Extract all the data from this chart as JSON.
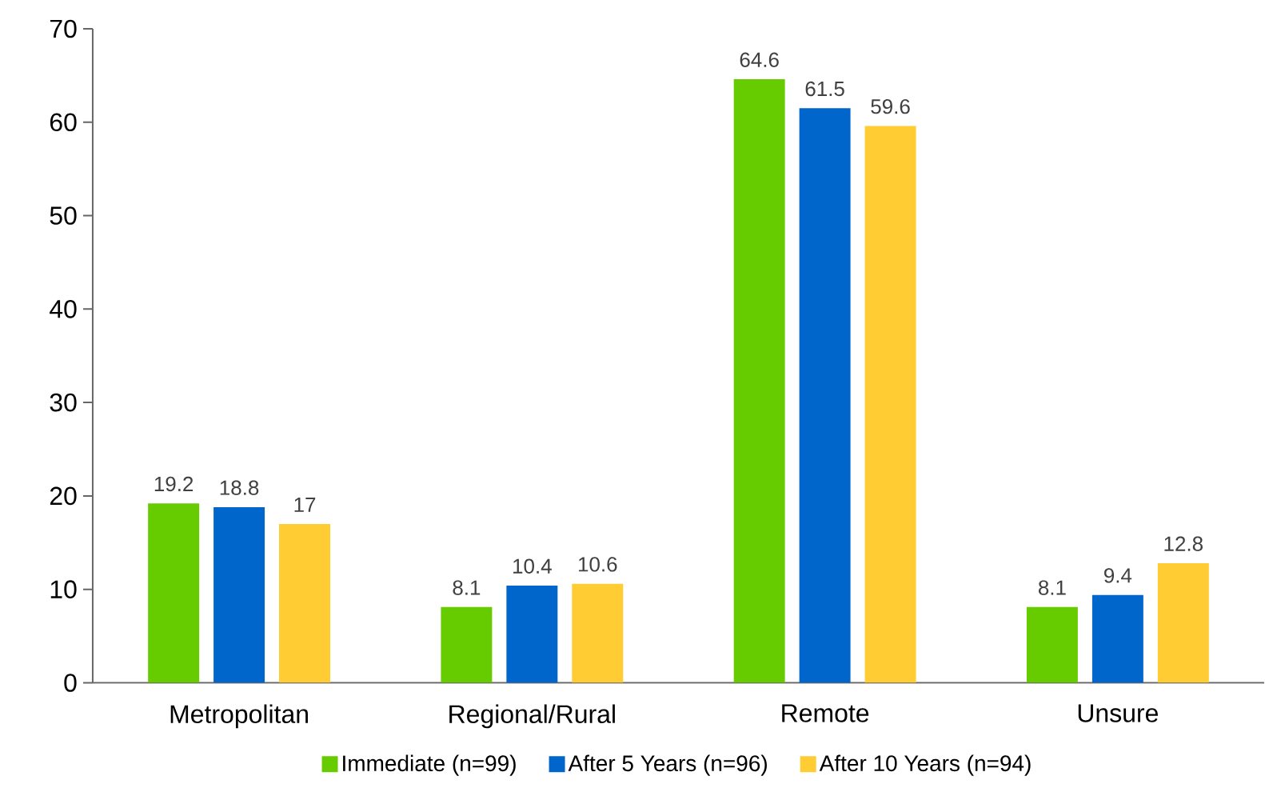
{
  "chart_data": {
    "type": "bar",
    "categories": [
      "Metropolitan",
      "Regional/Rural",
      "Remote",
      "Unsure"
    ],
    "series": [
      {
        "name": "Immediate (n=99)",
        "color": "#66cc00",
        "values": [
          19.2,
          8.1,
          64.6,
          8.1
        ]
      },
      {
        "name": "After 5 Years (n=96)",
        "color": "#0066cc",
        "values": [
          18.8,
          10.4,
          61.5,
          9.4
        ]
      },
      {
        "name": "After 10 Years (n=94)",
        "color": "#ffcc33",
        "values": [
          17,
          10.6,
          59.6,
          12.8
        ]
      }
    ],
    "ylim": [
      0,
      70
    ],
    "yticks": [
      0,
      10,
      20,
      30,
      40,
      50,
      60,
      70
    ],
    "data_labels": true,
    "grid": false,
    "legend": "bottom"
  }
}
